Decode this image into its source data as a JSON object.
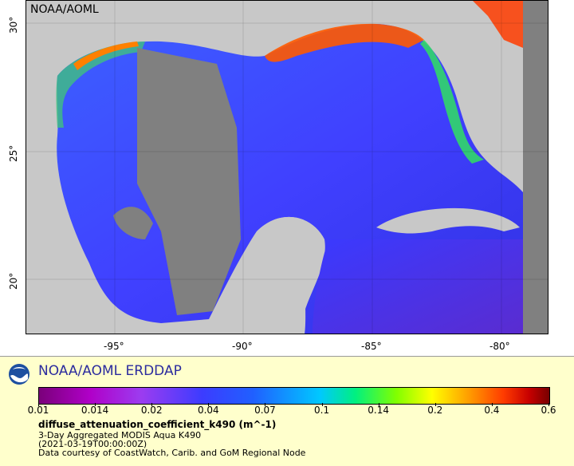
{
  "map": {
    "watermark": "NOAA/AOML",
    "lon_ticks": [
      "-95°",
      "-90°",
      "-85°",
      "-80°"
    ],
    "lat_ticks": [
      "30°",
      "25°",
      "20°"
    ],
    "colors": {
      "land": "#c8c8c8",
      "no_data": "#808080",
      "ocean_low": "#3c3cff",
      "coast_high": "#ff3c00"
    }
  },
  "legend": {
    "title": "NOAA/AOML ERDDAP",
    "scale_ticks": [
      "0.01",
      "0.014",
      "0.02",
      "0.04",
      "0.07",
      "0.1",
      "0.14",
      "0.2",
      "0.4",
      "0.6"
    ],
    "variable": "diffuse_attenuation_coefficient_k490 (m^-1)",
    "dataset": "3-Day Aggregated MODIS Aqua K490",
    "time": "(2021-03-19T00:00:00Z)",
    "credit": "Data courtesy of CoastWatch, Carib. and GoM Regional Node"
  }
}
